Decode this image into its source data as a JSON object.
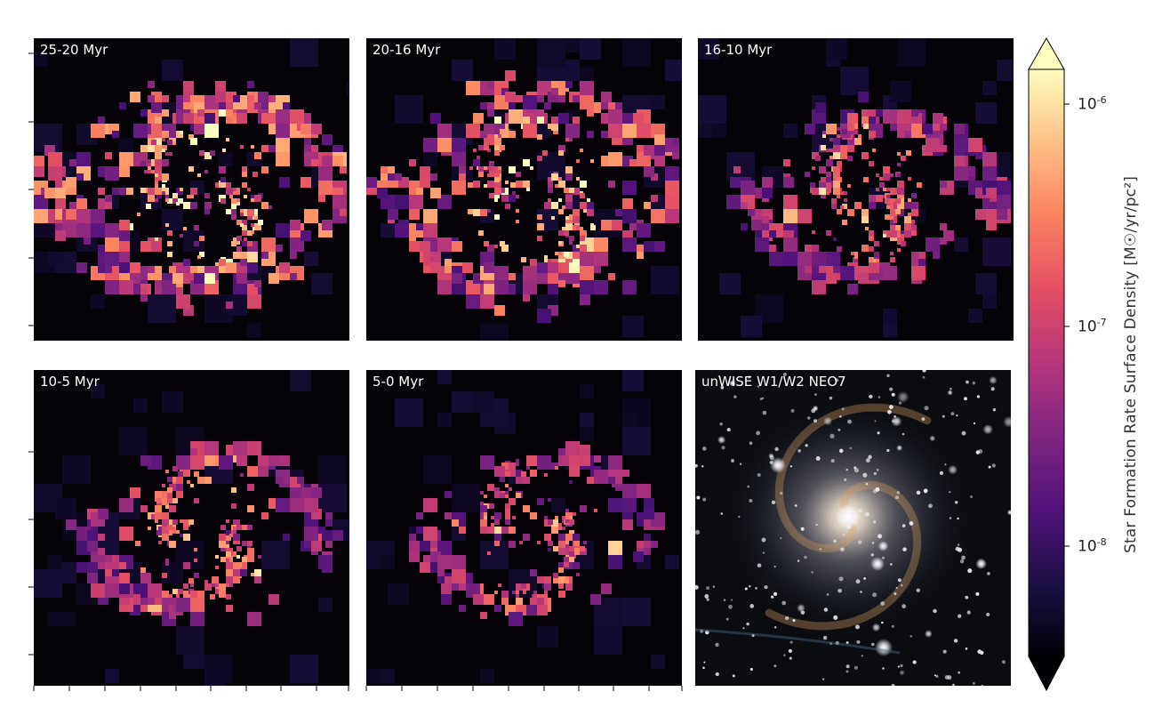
{
  "figure": {
    "panels": [
      {
        "id": "p1",
        "label": "25-20 Myr",
        "type": "sfr-map"
      },
      {
        "id": "p2",
        "label": "20-16 Myr",
        "type": "sfr-map"
      },
      {
        "id": "p3",
        "label": "16-10 Myr",
        "type": "sfr-map"
      },
      {
        "id": "p4",
        "label": "10-5 Myr",
        "type": "sfr-map"
      },
      {
        "id": "p5",
        "label": "5-0 Myr",
        "type": "sfr-map"
      },
      {
        "id": "p6",
        "label": "unWISE W1/W2 NEO7",
        "type": "image"
      }
    ]
  },
  "colorbar": {
    "title": "Star Formation Rate Surface Density [M☉/yr/pc²]",
    "ticks": [
      {
        "base": "10",
        "exp": "-6",
        "value": 1e-06
      },
      {
        "base": "10",
        "exp": "-7",
        "value": 1e-07
      },
      {
        "base": "10",
        "exp": "-8",
        "value": 1e-08
      }
    ],
    "range": [
      3e-09,
      2e-06
    ],
    "scale": "log",
    "colormap": "magma",
    "extend": "both"
  },
  "chart_data": {
    "type": "heatmap",
    "layout": "2x3 grid of spatially resolved star formation rate surface density maps plus one infrared image",
    "time_bins": [
      "25-20 Myr",
      "20-16 Myr",
      "16-10 Myr",
      "10-5 Myr",
      "5-0 Myr"
    ],
    "reference_image": "unWISE W1/W2 NEO7",
    "colorbar_label": "Star Formation Rate Surface Density [M☉/yr/pc²]",
    "colorbar_scale": "log",
    "colorbar_ticks": [
      1e-06,
      1e-07,
      1e-08
    ],
    "colormap": "magma"
  },
  "colors": {
    "panel_background": "#050307",
    "magma_stops": [
      "#000004",
      "#1c1044",
      "#4f127b",
      "#812581",
      "#b5367a",
      "#e55064",
      "#fb8761",
      "#fec287",
      "#fcfdbf"
    ]
  }
}
